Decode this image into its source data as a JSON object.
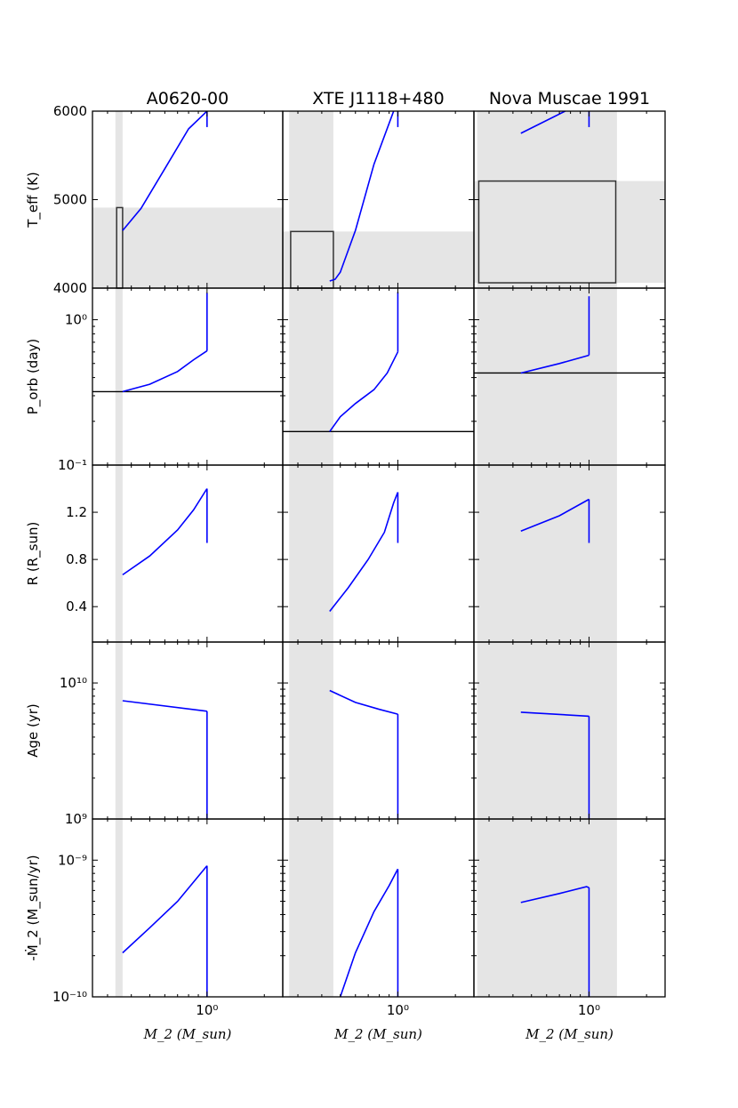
{
  "chart_data": {
    "type": "line",
    "layout": "5 rows x 3 columns of panels, shared x axis per column, shared y axis per row",
    "x_scale": "log",
    "x_label": "M_2 (M_sun)",
    "x_tick_labels": [
      "10⁰"
    ],
    "columns": [
      {
        "title": "A0620-00",
        "xlim": [
          0.25,
          2.5
        ],
        "shade_x": [
          0.33,
          0.36
        ]
      },
      {
        "title": "XTE J1118+480",
        "xlim": [
          0.25,
          2.5
        ],
        "shade_x": [
          0.27,
          0.46
        ]
      },
      {
        "title": "Nova Muscae 1991",
        "xlim": [
          0.25,
          2.5
        ],
        "shade_x": [
          0.26,
          1.4
        ]
      }
    ],
    "rows": [
      {
        "key": "teff",
        "ylabel": "T_eff (K)",
        "scale": "linear",
        "ylim": [
          4000,
          6000
        ],
        "tick_labels": [
          "4000",
          "5000",
          "6000"
        ]
      },
      {
        "key": "porb",
        "ylabel": "P_orb (day)",
        "scale": "log",
        "ylim": [
          0.1,
          1.65
        ],
        "tick_labels": [
          "10⁻¹",
          "10⁰"
        ]
      },
      {
        "key": "radius",
        "ylabel": "R (R_sun)",
        "scale": "linear",
        "ylim": [
          0.1,
          1.6
        ],
        "tick_labels": [
          "0.4",
          "0.8",
          "1.2"
        ]
      },
      {
        "key": "age",
        "ylabel": "Age (yr)",
        "scale": "log",
        "ylim": [
          1000000000.0,
          20000000000.0
        ],
        "tick_labels": [
          "10⁹",
          "10¹⁰"
        ]
      },
      {
        "key": "mdot",
        "ylabel": "-Ṁ_2 (M_sun/yr)",
        "scale": "log",
        "ylim": [
          1e-10,
          2e-09
        ],
        "tick_labels": [
          "10⁻¹⁰",
          "10⁻⁹"
        ]
      }
    ],
    "panels": {
      "A0620-00": {
        "teff": {
          "curve": [
            [
              0.36,
              4650
            ],
            [
              0.45,
              4900
            ],
            [
              0.6,
              5350
            ],
            [
              0.8,
              5800
            ],
            [
              1.0,
              6050
            ]
          ],
          "vertical": {
            "x": 1.0,
            "y": [
              5820,
              6020
            ]
          },
          "band_y": [
            4000,
            4910
          ],
          "box": {
            "x": [
              0.335,
              0.36
            ],
            "y": [
              4000,
              4910
            ]
          }
        },
        "porb": {
          "curve": [
            [
              0.36,
              0.32
            ],
            [
              0.5,
              0.36
            ],
            [
              0.7,
              0.44
            ],
            [
              0.85,
              0.53
            ],
            [
              1.0,
              0.61
            ]
          ],
          "vertical": {
            "x": 1.0,
            "y": [
              0.61,
              1.53
            ]
          },
          "hline": 0.32
        },
        "radius": {
          "curve": [
            [
              0.36,
              0.67
            ],
            [
              0.5,
              0.83
            ],
            [
              0.7,
              1.05
            ],
            [
              0.85,
              1.22
            ],
            [
              1.0,
              1.4
            ]
          ],
          "vertical": {
            "x": 1.0,
            "y": [
              0.94,
              1.4
            ]
          }
        },
        "age": {
          "curve": [
            [
              0.36,
              7400000000.0
            ],
            [
              1.0,
              6200000000.0
            ]
          ],
          "vertical": {
            "x": 1.0,
            "y": [
              1000000000.0,
              6200000000.0
            ]
          }
        },
        "mdot": {
          "curve": [
            [
              0.36,
              2.1e-10
            ],
            [
              0.5,
              3.2e-10
            ],
            [
              0.7,
              5e-10
            ],
            [
              1.0,
              9.1e-10
            ]
          ],
          "vertical": {
            "x": 1.0,
            "y": [
              1e-10,
              9.1e-10
            ]
          }
        }
      },
      "XTE J1118+480": {
        "teff": {
          "curve": [
            [
              0.44,
              4080
            ],
            [
              0.47,
              4100
            ],
            [
              0.5,
              4180
            ],
            [
              0.6,
              4650
            ],
            [
              0.75,
              5400
            ],
            [
              0.95,
              6050
            ]
          ],
          "vertical": {
            "x": 1.0,
            "y": [
              5820,
              6020
            ]
          },
          "band_y": [
            4000,
            4640
          ],
          "box": {
            "x": [
              0.275,
              0.46
            ],
            "y": [
              4000,
              4640
            ]
          }
        },
        "porb": {
          "curve": [
            [
              0.44,
              0.17
            ],
            [
              0.5,
              0.215
            ],
            [
              0.6,
              0.265
            ],
            [
              0.75,
              0.33
            ],
            [
              0.88,
              0.43
            ],
            [
              1.0,
              0.6
            ]
          ],
          "vertical": {
            "x": 1.0,
            "y": [
              0.6,
              1.55
            ]
          },
          "hline": 0.17
        },
        "radius": {
          "curve": [
            [
              0.44,
              0.36
            ],
            [
              0.55,
              0.56
            ],
            [
              0.7,
              0.8
            ],
            [
              0.85,
              1.03
            ],
            [
              0.95,
              1.28
            ],
            [
              1.0,
              1.37
            ]
          ],
          "vertical": {
            "x": 1.0,
            "y": [
              0.94,
              1.37
            ]
          }
        },
        "age": {
          "curve": [
            [
              0.44,
              8800000000.0
            ],
            [
              0.6,
              7200000000.0
            ],
            [
              0.8,
              6400000000.0
            ],
            [
              1.0,
              5900000000.0
            ]
          ],
          "vertical": {
            "x": 1.0,
            "y": [
              1000000000.0,
              5900000000.0
            ]
          }
        },
        "mdot": {
          "curve": [
            [
              0.5,
              1e-10
            ],
            [
              0.6,
              2.1e-10
            ],
            [
              0.75,
              4.2e-10
            ],
            [
              0.9,
              6.5e-10
            ],
            [
              1.0,
              8.6e-10
            ]
          ],
          "vertical": {
            "x": 1.0,
            "y": [
              1e-10,
              8.6e-10
            ]
          }
        }
      },
      "Nova Muscae 1991": {
        "teff": {
          "curve": [
            [
              0.44,
              5750
            ],
            [
              0.75,
              6050
            ]
          ],
          "vertical": {
            "x": 1.0,
            "y": [
              5820,
              6020
            ]
          },
          "band_y": [
            4060,
            5210
          ],
          "box": {
            "x": [
              0.265,
              1.38
            ],
            "y": [
              4060,
              5210
            ]
          }
        },
        "porb": {
          "curve": [
            [
              0.44,
              0.43
            ],
            [
              0.7,
              0.5
            ],
            [
              1.0,
              0.57
            ]
          ],
          "vertical": {
            "x": 1.0,
            "y": [
              0.57,
              1.45
            ]
          },
          "hline": 0.43
        },
        "radius": {
          "curve": [
            [
              0.44,
              1.04
            ],
            [
              0.7,
              1.17
            ],
            [
              1.0,
              1.31
            ]
          ],
          "vertical": {
            "x": 1.0,
            "y": [
              0.94,
              1.31
            ]
          }
        },
        "age": {
          "curve": [
            [
              0.44,
              6100000000.0
            ],
            [
              1.0,
              5700000000.0
            ]
          ],
          "vertical": {
            "x": 1.0,
            "y": [
              1000000000.0,
              5700000000.0
            ]
          }
        },
        "mdot": {
          "curve": [
            [
              0.44,
              4.9e-10
            ],
            [
              0.7,
              5.7e-10
            ],
            [
              0.97,
              6.4e-10
            ],
            [
              1.0,
              6.3e-10
            ]
          ],
          "vertical": {
            "x": 1.0,
            "y": [
              1e-10,
              6.3e-10
            ]
          }
        }
      }
    },
    "colors": {
      "curve": "#0000ff",
      "shade": "#e5e5e5",
      "box": "#333333",
      "hline": "#000000"
    }
  }
}
